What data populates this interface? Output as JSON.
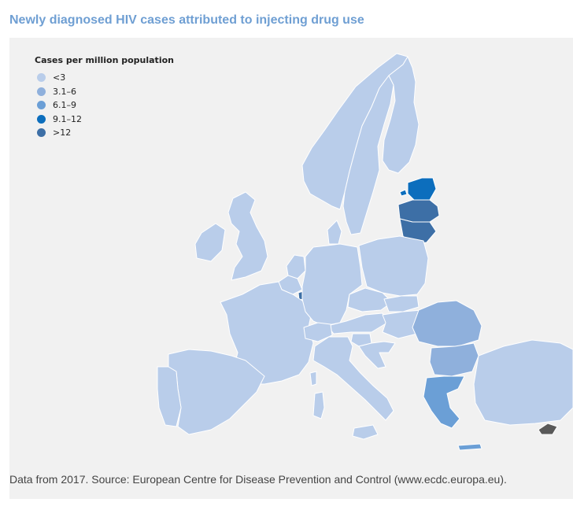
{
  "title": "Newly diagnosed HIV cases attributed to injecting drug use",
  "legend": {
    "title": "Cases per million population",
    "classes": [
      {
        "label": "<3",
        "color": "#b9cdea"
      },
      {
        "label": "3.1–6",
        "color": "#8fb0dc"
      },
      {
        "label": "6.1–9",
        "color": "#6b9fd6"
      },
      {
        "label": "9.1–12",
        "color": "#0c6ebd"
      },
      {
        "label": ">12",
        "color": "#3d6fa6"
      }
    ]
  },
  "source": "Data from 2017. Source: European Centre for Disease Prevention and Control (www.ecdc.europa.eu)."
}
